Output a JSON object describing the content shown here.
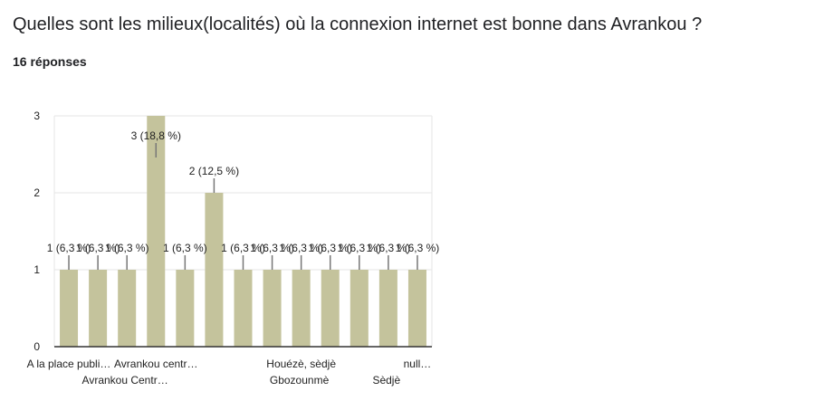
{
  "question": "Quelles sont les milieux(localités) où la connexion internet est bonne dans Avrankou ?",
  "responses": "16 réponses",
  "colors": {
    "bar": "#c4c39c",
    "grid": "#e6e6e6",
    "axis": "#333333",
    "label_line": "#777777"
  },
  "chart_data": {
    "type": "bar",
    "categories": [
      "A la place publi…",
      "Avrankou Centr…",
      "Avrankou centr…",
      "Avrankou centr…",
      "",
      "",
      "",
      "Gbozounmè",
      "Houézè, sèdjè",
      "",
      "Sèdjè",
      "",
      "null…"
    ],
    "tick_labels_row1": [
      "A la place publi…",
      "Avrankou centr…",
      "Houézè, sèdjè",
      "null…"
    ],
    "tick_labels_row2": [
      "Avrankou Centr…",
      "Gbozounmè",
      "Sèdjè"
    ],
    "values": [
      1,
      1,
      1,
      3,
      1,
      2,
      1,
      1,
      1,
      1,
      1,
      1,
      1
    ],
    "data_labels": [
      "1 (6,3 %)",
      "1 (6,3 %)",
      "1 (6,3 %)",
      "3 (18,8 %)",
      "1 (6,3 %)",
      "2 (12,5 %)",
      "1 (6,3 %)",
      "1 (6,3 %)",
      "1 (6,3 %)",
      "1 (6,3 %)",
      "1 (6,3 %)",
      "1 (6,3 %)",
      "1 (6,3 %)"
    ],
    "y_ticks": [
      0,
      1,
      2,
      3
    ],
    "ylim": [
      0,
      3
    ],
    "grid": true,
    "legend": "none"
  }
}
